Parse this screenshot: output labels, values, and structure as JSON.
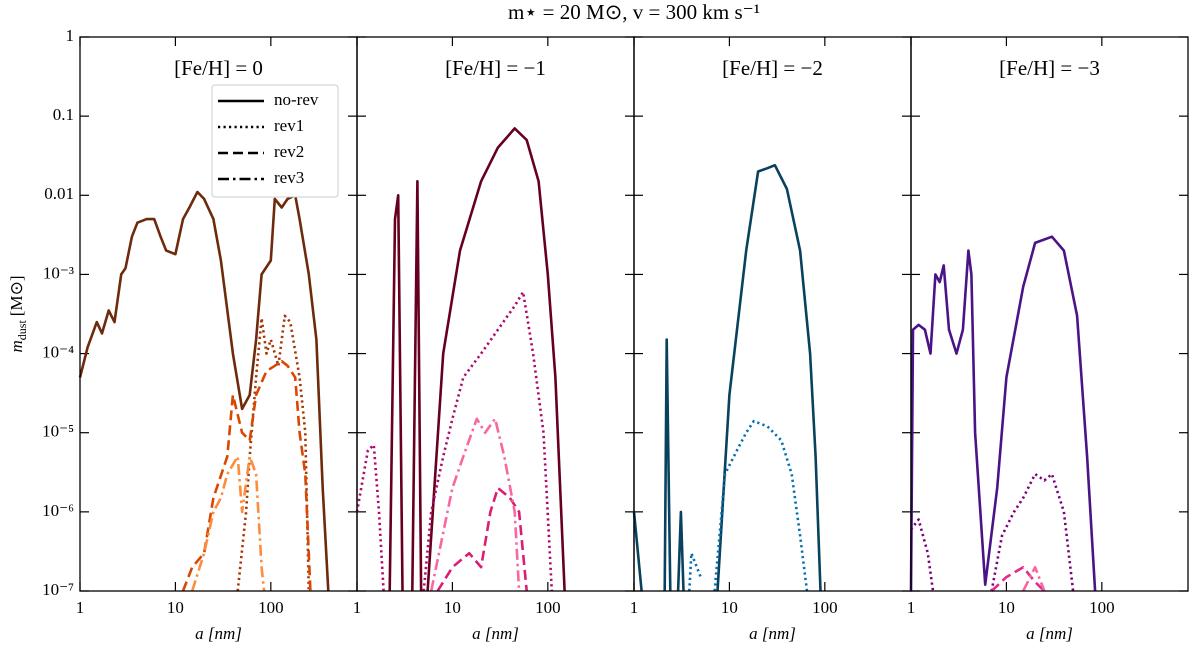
{
  "title": "m⋆ = 20 M⊙, v = 300 km s⁻¹",
  "chart_data": [
    {
      "type": "line",
      "title": "[Fe/H] = 0",
      "x_label": "a [nm]",
      "y_label": {
        "symbol": "m",
        "subscript": "dust",
        "unit": "[M⊙]"
      },
      "log_x": true,
      "log_y": true,
      "xlim": [
        1,
        800
      ],
      "ylim": [
        1e-07,
        1
      ],
      "xticks": [
        1,
        10,
        100
      ],
      "yticks": [
        {
          "value": 1e-07,
          "label": "10⁻⁷"
        },
        {
          "value": 1e-06,
          "label": "10⁻⁶"
        },
        {
          "value": 1e-05,
          "label": "10⁻⁵"
        },
        {
          "value": 0.0001,
          "label": "10⁻⁴"
        },
        {
          "value": 0.001,
          "label": "10⁻³"
        },
        0.01,
        0.1,
        1
      ],
      "show_ytick_labels": true,
      "legend": "upper right",
      "series": [
        {
          "name": "no-rev",
          "color": "#6e2a0c",
          "dash": "solid",
          "x": [
            1,
            1.2,
            1.5,
            1.7,
            2,
            2.3,
            2.7,
            3,
            3.5,
            4,
            5,
            6,
            7,
            8,
            10,
            12,
            14,
            17,
            20,
            25,
            30,
            40,
            50,
            60,
            70,
            80,
            100,
            110,
            130,
            150,
            180,
            200,
            250,
            300,
            350,
            400
          ],
          "values": [
            5e-05,
            0.00012,
            0.00025,
            0.00018,
            0.00035,
            0.00025,
            0.001,
            0.0012,
            0.003,
            0.0045,
            0.005,
            0.005,
            0.003,
            0.002,
            0.0018,
            0.005,
            0.007,
            0.011,
            0.009,
            0.005,
            0.0015,
            0.0001,
            2e-05,
            3e-05,
            0.00015,
            0.001,
            0.0015,
            0.009,
            0.007,
            0.009,
            0.01,
            0.005,
            0.001,
            0.00015,
            2e-06,
            1e-07
          ]
        },
        {
          "name": "rev1",
          "color": "#a63603",
          "dash": "dotted",
          "x": [
            45,
            55,
            60,
            70,
            80,
            90,
            100,
            120,
            140,
            160,
            200,
            230,
            250
          ],
          "values": [
            1e-07,
            1e-06,
            5e-06,
            5e-05,
            0.00028,
            0.0001,
            0.00015,
            7e-05,
            0.0003,
            0.00025,
            5e-05,
            1e-05,
            1e-07
          ]
        },
        {
          "name": "rev2",
          "color": "#d94801",
          "dash": "dashed",
          "x": [
            12,
            15,
            20,
            25,
            35,
            40,
            50,
            60,
            70,
            90,
            110,
            130,
            150,
            180,
            200,
            230,
            260
          ],
          "values": [
            1e-07,
            2e-07,
            3e-07,
            1.5e-06,
            5e-06,
            3e-05,
            1e-05,
            8e-06,
            3e-05,
            6e-05,
            7e-05,
            8e-05,
            7e-05,
            5e-05,
            1e-05,
            3e-06,
            1e-07
          ]
        },
        {
          "name": "rev3",
          "color": "#fd8d3c",
          "dash": "dashdot",
          "x": [
            15,
            20,
            25,
            30,
            35,
            45,
            50,
            60,
            70,
            80,
            85
          ],
          "values": [
            1e-07,
            3e-07,
            1e-06,
            1.5e-06,
            3e-06,
            5e-06,
            1e-06,
            5e-06,
            3e-06,
            2e-07,
            1e-07
          ]
        }
      ]
    },
    {
      "type": "line",
      "title": "[Fe/H] = −1",
      "x_label": "a [nm]",
      "log_x": true,
      "log_y": true,
      "xlim": [
        1,
        800
      ],
      "ylim": [
        1e-07,
        1
      ],
      "xticks": [
        1,
        10,
        100
      ],
      "yticks": [
        1e-07,
        1e-06,
        1e-05,
        0.0001,
        0.001,
        0.01,
        0.1,
        1
      ],
      "show_ytick_labels": false,
      "series": [
        {
          "color": "#67001f",
          "dash": "solid",
          "x": [
            2.2,
            2.5,
            2.7,
            3,
            null,
            3.8,
            4.3,
            4.7,
            null,
            5.5,
            8,
            12,
            20,
            30,
            45,
            60,
            80,
            100,
            120,
            150
          ],
          "values": [
            1e-07,
            0.005,
            0.01,
            1e-07,
            null,
            1e-07,
            0.015,
            1e-07,
            null,
            1e-07,
            0.0001,
            0.002,
            0.015,
            0.04,
            0.07,
            0.05,
            0.015,
            0.001,
            5e-05,
            1e-07
          ]
        },
        {
          "color": "#ae0a6e",
          "dash": "dotted",
          "x": [
            1,
            1.3,
            1.5,
            1.7,
            1.9,
            null,
            5,
            6,
            8,
            10,
            13,
            20,
            30,
            45,
            55,
            70,
            90,
            110
          ],
          "values": [
            1e-06,
            6e-06,
            7e-06,
            1e-06,
            1e-07,
            null,
            1e-07,
            1e-06,
            5e-06,
            1.5e-05,
            5e-05,
            0.0001,
            0.0002,
            0.0004,
            0.0006,
            0.0001,
            1e-05,
            1e-07
          ]
        },
        {
          "color": "#dd1c77",
          "dash": "dashed",
          "x": [
            7,
            10,
            15,
            20,
            25,
            30,
            40,
            50,
            60
          ],
          "values": [
            1e-07,
            2e-07,
            3e-07,
            2e-07,
            1e-06,
            2e-06,
            1.5e-06,
            1e-06,
            1e-07
          ]
        },
        {
          "color": "#f768a1",
          "dash": "dashdot",
          "x": [
            6,
            10,
            13,
            18,
            22,
            28,
            35,
            45,
            50
          ],
          "values": [
            1e-07,
            2e-06,
            5e-06,
            1.5e-05,
            1e-05,
            1.5e-05,
            5e-06,
            1e-06,
            1e-07
          ]
        }
      ]
    },
    {
      "type": "line",
      "title": "[Fe/H] = −2",
      "x_label": "a [nm]",
      "log_x": true,
      "log_y": true,
      "xlim": [
        1,
        800
      ],
      "ylim": [
        1e-07,
        1
      ],
      "xticks": [
        1,
        10,
        100
      ],
      "yticks": [
        1e-07,
        1e-06,
        1e-05,
        0.0001,
        0.001,
        0.01,
        0.1,
        1
      ],
      "show_ytick_labels": false,
      "series": [
        {
          "color": "#08425e",
          "dash": "solid",
          "x": [
            1,
            1.2,
            null,
            2.1,
            2.2,
            2.4,
            null,
            2.9,
            3.1,
            3.3,
            null,
            7.5,
            10,
            15,
            20,
            25,
            30,
            40,
            55,
            70,
            80,
            90
          ],
          "values": [
            1e-06,
            1e-07,
            null,
            1e-07,
            0.00015,
            1e-07,
            null,
            1e-07,
            1e-06,
            1e-07,
            null,
            1e-07,
            3e-05,
            0.002,
            0.02,
            0.022,
            0.024,
            0.012,
            0.002,
            0.0001,
            5e-06,
            1e-07
          ]
        },
        {
          "color": "#0570b0",
          "dash": "dotted",
          "x": [
            3.8,
            4,
            5,
            null,
            7,
            9,
            12,
            15,
            18,
            25,
            35,
            45,
            55,
            65
          ],
          "values": [
            1e-07,
            3e-07,
            1.5e-07,
            null,
            1e-07,
            3e-06,
            6e-06,
            1e-05,
            1.4e-05,
            1.2e-05,
            8e-06,
            3e-06,
            5e-07,
            1e-07
          ]
        }
      ]
    },
    {
      "type": "line",
      "title": "[Fe/H] = −3",
      "x_label": "a [nm]",
      "log_x": true,
      "log_y": true,
      "xlim": [
        1,
        800
      ],
      "ylim": [
        1e-07,
        1
      ],
      "xticks": [
        1,
        10,
        100
      ],
      "yticks": [
        1e-07,
        1e-06,
        1e-05,
        0.0001,
        0.001,
        0.01,
        0.1,
        1
      ],
      "show_ytick_labels": false,
      "series": [
        {
          "color": "#4a1486",
          "dash": "solid",
          "x": [
            1,
            1.05,
            1.2,
            1.4,
            1.6,
            1.8,
            2,
            2.2,
            2.5,
            3,
            3.5,
            4,
            4.3,
            4.7,
            6,
            8,
            10,
            15,
            20,
            30,
            40,
            55,
            70,
            85
          ],
          "values": [
            1e-07,
            0.0002,
            0.00023,
            0.0002,
            0.0001,
            0.001,
            0.0008,
            0.0013,
            0.0002,
            0.0001,
            0.0002,
            0.002,
            0.001,
            1e-05,
            1.2e-07,
            2e-06,
            5e-05,
            0.0007,
            0.0025,
            0.003,
            0.002,
            0.0003,
            5e-06,
            1e-07
          ]
        },
        {
          "color": "#7a0177",
          "dash": "dotted",
          "x": [
            1,
            1.2,
            1.5,
            1.7,
            null,
            7,
            9,
            12,
            15,
            20,
            25,
            30,
            40,
            50
          ],
          "values": [
            6e-07,
            8e-07,
            3e-07,
            1e-07,
            null,
            1e-07,
            5e-07,
            1e-06,
            1.5e-06,
            3e-06,
            2.5e-06,
            3e-06,
            1e-06,
            1e-07
          ]
        },
        {
          "color": "#e7298a",
          "dash": "dashed",
          "x": [
            7,
            10,
            15,
            20,
            25
          ],
          "values": [
            1e-07,
            1.5e-07,
            2e-07,
            1.3e-07,
            1e-07
          ]
        },
        {
          "color": "#f768a1",
          "dash": "dashdot",
          "x": [
            15,
            20,
            25
          ],
          "values": [
            1e-07,
            2e-07,
            1e-07
          ]
        }
      ]
    }
  ]
}
